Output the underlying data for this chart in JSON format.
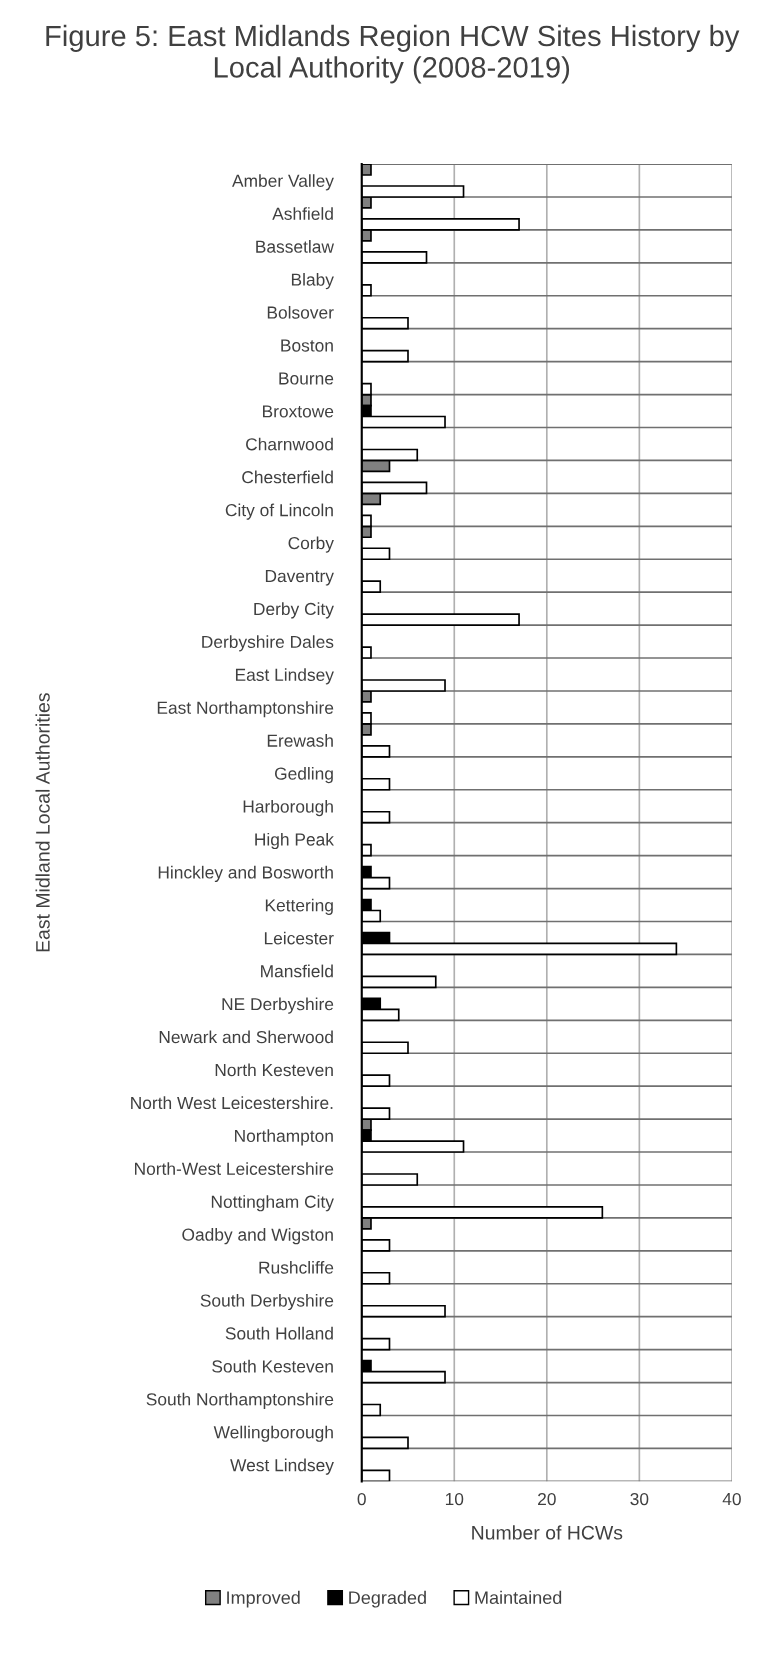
{
  "chart_data": {
    "type": "bar",
    "orientation": "horizontal",
    "title": "Figure 5: East Midlands Region HCW Sites History by Local Authority (2008-2019)",
    "xlabel": "Number of HCWs",
    "ylabel": "East Midland Local Authorities",
    "categories": [
      "Amber Valley",
      "Ashfield",
      "Bassetlaw",
      "Blaby",
      "Bolsover",
      "Boston",
      "Bourne",
      "Broxtowe",
      "Charnwood",
      "Chesterfield",
      "City of Lincoln",
      "Corby",
      "Daventry",
      "Derby City",
      "Derbyshire Dales",
      "East Lindsey",
      "East Northamptonshire",
      "Erewash",
      "Gedling",
      "Harborough",
      "High Peak",
      "Hinckley and Bosworth",
      "Kettering",
      "Leicester",
      "Mansfield",
      "NE Derbyshire",
      "Newark and Sherwood",
      "North Kesteven",
      "North West Leicestershire.",
      "Northampton",
      "North-West Leicestershire",
      "Nottingham City",
      "Oadby and Wigston",
      "Rushcliffe",
      "South Derbyshire",
      "South Holland",
      "South Kesteven",
      "South Northamptonshire",
      "Wellingborough",
      "West Lindsey"
    ],
    "series": [
      {
        "name": "Improved",
        "color": "#808080",
        "values": [
          1,
          1,
          1,
          0,
          0,
          0,
          0,
          1,
          0,
          3,
          2,
          1,
          0,
          0,
          0,
          0,
          1,
          1,
          0,
          0,
          0,
          0,
          0,
          0,
          0,
          0,
          0,
          0,
          0,
          1,
          0,
          0,
          1,
          0,
          0,
          0,
          0,
          0,
          0,
          0
        ]
      },
      {
        "name": "Degraded",
        "color": "#000000",
        "values": [
          0,
          0,
          0,
          0,
          0,
          0,
          0,
          1,
          0,
          0,
          0,
          0,
          0,
          0,
          0,
          0,
          0,
          0,
          0,
          0,
          0,
          1,
          1,
          3,
          0,
          2,
          0,
          0,
          0,
          1,
          0,
          0,
          0,
          0,
          0,
          0,
          1,
          0,
          0,
          0
        ]
      },
      {
        "name": "Maintained",
        "color": "#ffffff",
        "values": [
          11,
          17,
          7,
          1,
          5,
          5,
          1,
          9,
          6,
          7,
          1,
          3,
          2,
          17,
          1,
          9,
          1,
          3,
          3,
          3,
          1,
          3,
          2,
          34,
          8,
          4,
          5,
          3,
          3,
          11,
          6,
          26,
          3,
          3,
          9,
          3,
          9,
          2,
          5,
          3
        ]
      }
    ],
    "xlim": [
      0,
      40
    ],
    "xticks": [
      0,
      10,
      20,
      30,
      40
    ],
    "grid": true,
    "legend": "bottom"
  }
}
